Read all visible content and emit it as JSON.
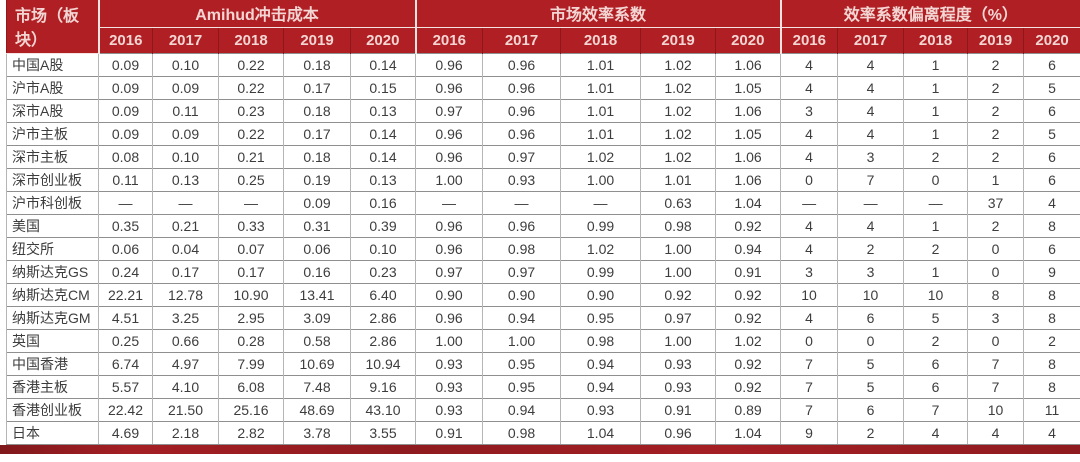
{
  "colors": {
    "header_bg": "#b01f24",
    "header_text": "#f3d6d3",
    "header_line": "#8e171b",
    "grid_line_h": "#8f8f8f",
    "grid_line_v": "#b5b5b5",
    "body_text": "#3d3d3d",
    "accent_bar": "#951d22"
  },
  "chart_data": {
    "type": "table",
    "corner_header": "市场（板块）",
    "column_groups": [
      {
        "label": "Amihud冲击成本",
        "years": [
          "2016",
          "2017",
          "2018",
          "2019",
          "2020"
        ]
      },
      {
        "label": "市场效率系数",
        "years": [
          "2016",
          "2017",
          "2018",
          "2019",
          "2020"
        ]
      },
      {
        "label": "效率系数偏离程度（%）",
        "years": [
          "2016",
          "2017",
          "2018",
          "2019",
          "2020"
        ]
      }
    ],
    "rows": [
      {
        "name": "中国A股",
        "amihud": [
          "0.09",
          "0.10",
          "0.22",
          "0.18",
          "0.14"
        ],
        "efficiency": [
          "0.96",
          "0.96",
          "1.01",
          "1.02",
          "1.06"
        ],
        "deviation": [
          "4",
          "4",
          "1",
          "2",
          "6"
        ]
      },
      {
        "name": "沪市A股",
        "amihud": [
          "0.09",
          "0.09",
          "0.22",
          "0.17",
          "0.15"
        ],
        "efficiency": [
          "0.96",
          "0.96",
          "1.01",
          "1.02",
          "1.05"
        ],
        "deviation": [
          "4",
          "4",
          "1",
          "2",
          "5"
        ]
      },
      {
        "name": "深市A股",
        "amihud": [
          "0.09",
          "0.11",
          "0.23",
          "0.18",
          "0.13"
        ],
        "efficiency": [
          "0.97",
          "0.96",
          "1.01",
          "1.02",
          "1.06"
        ],
        "deviation": [
          "3",
          "4",
          "1",
          "2",
          "6"
        ]
      },
      {
        "name": "沪市主板",
        "amihud": [
          "0.09",
          "0.09",
          "0.22",
          "0.17",
          "0.14"
        ],
        "efficiency": [
          "0.96",
          "0.96",
          "1.01",
          "1.02",
          "1.05"
        ],
        "deviation": [
          "4",
          "4",
          "1",
          "2",
          "5"
        ]
      },
      {
        "name": "深市主板",
        "amihud": [
          "0.08",
          "0.10",
          "0.21",
          "0.18",
          "0.14"
        ],
        "efficiency": [
          "0.96",
          "0.97",
          "1.02",
          "1.02",
          "1.06"
        ],
        "deviation": [
          "4",
          "3",
          "2",
          "2",
          "6"
        ]
      },
      {
        "name": "深市创业板",
        "amihud": [
          "0.11",
          "0.13",
          "0.25",
          "0.19",
          "0.13"
        ],
        "efficiency": [
          "1.00",
          "0.93",
          "1.00",
          "1.01",
          "1.06"
        ],
        "deviation": [
          "0",
          "7",
          "0",
          "1",
          "6"
        ]
      },
      {
        "name": "沪市科创板",
        "amihud": [
          "—",
          "—",
          "—",
          "0.09",
          "0.16"
        ],
        "efficiency": [
          "—",
          "—",
          "—",
          "0.63",
          "1.04"
        ],
        "deviation": [
          "—",
          "—",
          "—",
          "37",
          "4"
        ]
      },
      {
        "name": "美国",
        "amihud": [
          "0.35",
          "0.21",
          "0.33",
          "0.31",
          "0.39"
        ],
        "efficiency": [
          "0.96",
          "0.96",
          "0.99",
          "0.98",
          "0.92"
        ],
        "deviation": [
          "4",
          "4",
          "1",
          "2",
          "8"
        ]
      },
      {
        "name": "纽交所",
        "amihud": [
          "0.06",
          "0.04",
          "0.07",
          "0.06",
          "0.10"
        ],
        "efficiency": [
          "0.96",
          "0.98",
          "1.02",
          "1.00",
          "0.94"
        ],
        "deviation": [
          "4",
          "2",
          "2",
          "0",
          "6"
        ]
      },
      {
        "name": "纳斯达克GS",
        "amihud": [
          "0.24",
          "0.17",
          "0.17",
          "0.16",
          "0.23"
        ],
        "efficiency": [
          "0.97",
          "0.97",
          "0.99",
          "1.00",
          "0.91"
        ],
        "deviation": [
          "3",
          "3",
          "1",
          "0",
          "9"
        ]
      },
      {
        "name": "纳斯达克CM",
        "amihud": [
          "22.21",
          "12.78",
          "10.90",
          "13.41",
          "6.40"
        ],
        "efficiency": [
          "0.90",
          "0.90",
          "0.90",
          "0.92",
          "0.92"
        ],
        "deviation": [
          "10",
          "10",
          "10",
          "8",
          "8"
        ]
      },
      {
        "name": "纳斯达克GM",
        "amihud": [
          "4.51",
          "3.25",
          "2.95",
          "3.09",
          "2.86"
        ],
        "efficiency": [
          "0.96",
          "0.94",
          "0.95",
          "0.97",
          "0.92"
        ],
        "deviation": [
          "4",
          "6",
          "5",
          "3",
          "8"
        ]
      },
      {
        "name": "英国",
        "amihud": [
          "0.25",
          "0.66",
          "0.28",
          "0.58",
          "2.86"
        ],
        "efficiency": [
          "1.00",
          "1.00",
          "0.98",
          "1.00",
          "1.02"
        ],
        "deviation": [
          "0",
          "0",
          "2",
          "0",
          "2"
        ]
      },
      {
        "name": "中国香港",
        "amihud": [
          "6.74",
          "4.97",
          "7.99",
          "10.69",
          "10.94"
        ],
        "efficiency": [
          "0.93",
          "0.95",
          "0.94",
          "0.93",
          "0.92"
        ],
        "deviation": [
          "7",
          "5",
          "6",
          "7",
          "8"
        ]
      },
      {
        "name": "香港主板",
        "amihud": [
          "5.57",
          "4.10",
          "6.08",
          "7.48",
          "9.16"
        ],
        "efficiency": [
          "0.93",
          "0.95",
          "0.94",
          "0.93",
          "0.92"
        ],
        "deviation": [
          "7",
          "5",
          "6",
          "7",
          "8"
        ]
      },
      {
        "name": "香港创业板",
        "amihud": [
          "22.42",
          "21.50",
          "25.16",
          "48.69",
          "43.10"
        ],
        "efficiency": [
          "0.93",
          "0.94",
          "0.93",
          "0.91",
          "0.89"
        ],
        "deviation": [
          "7",
          "6",
          "7",
          "10",
          "11"
        ]
      },
      {
        "name": "日本",
        "amihud": [
          "4.69",
          "2.18",
          "2.82",
          "3.78",
          "3.55"
        ],
        "efficiency": [
          "0.91",
          "0.98",
          "1.04",
          "0.96",
          "1.04"
        ],
        "deviation": [
          "9",
          "2",
          "4",
          "4",
          "4"
        ]
      }
    ]
  }
}
